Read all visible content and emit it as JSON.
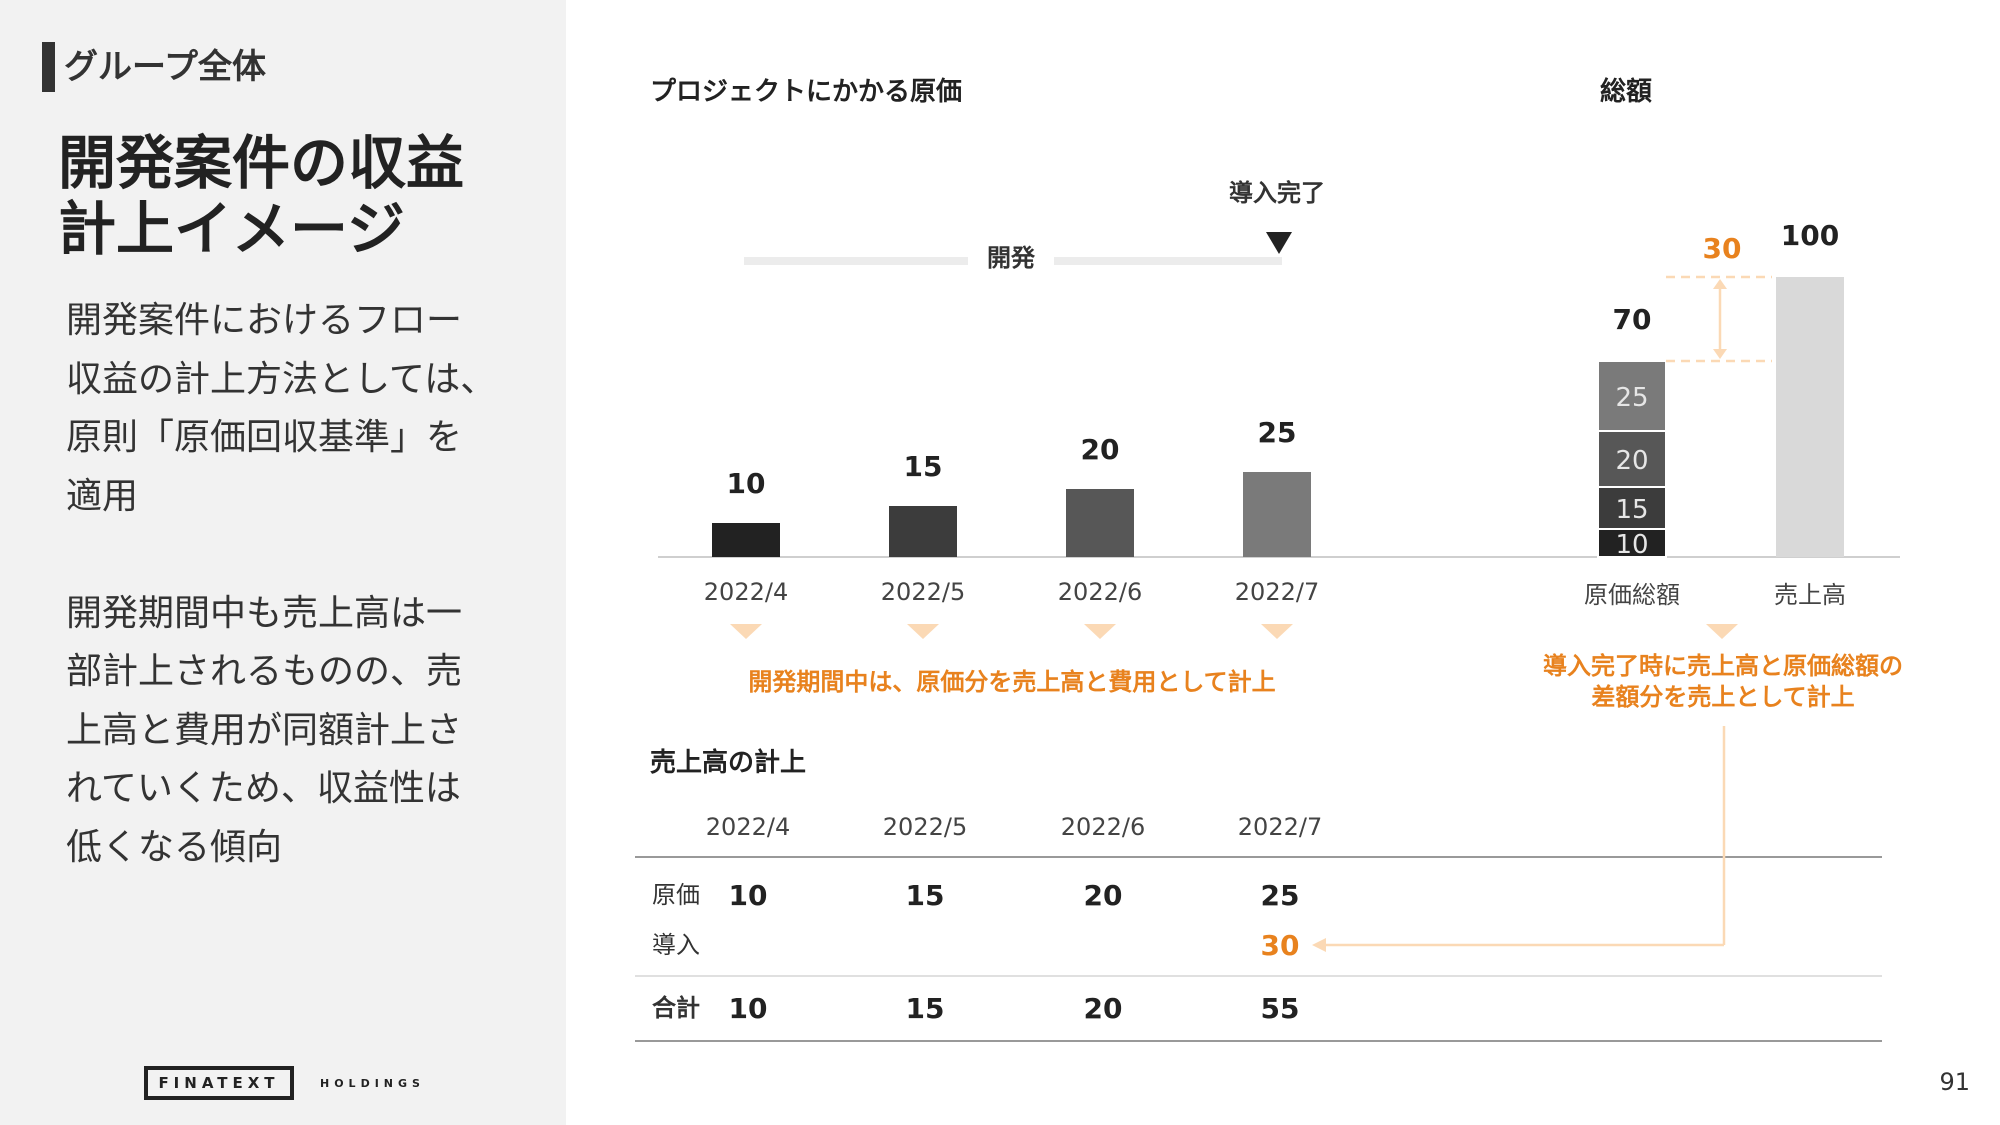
{
  "sidebar": {
    "section": "グループ全体",
    "title": "開発案件の収益\n計上イメージ",
    "body": "開発案件におけるフロー\n収益の計上方法としては、\n原則「原価回収基準」を\n適用\n\n開発期間中も売上高は一\n部計上されるものの、売\n上高と費用が同額計上さ\nれていくため、収益性は\n低くなる傾向",
    "logo_main": "FINATEXT",
    "logo_sub": "HOLDINGS"
  },
  "page_number": "91",
  "chart_data": [
    {
      "type": "bar",
      "title": "プロジェクトにかかる原価",
      "categories": [
        "2022/4",
        "2022/5",
        "2022/6",
        "2022/7"
      ],
      "values": [
        10,
        15,
        20,
        25
      ],
      "colors": [
        "#222222",
        "#3c3c3c",
        "#575757",
        "#7a7a7a"
      ],
      "phase_label": "開発",
      "milestone_label": "導入完了",
      "note": "開発期間中は、原価分を売上高と費用として計上"
    },
    {
      "type": "bar",
      "title": "総額",
      "categories": [
        "原価総額",
        "売上高"
      ],
      "stack": [
        10,
        15,
        20,
        25
      ],
      "stack_colors": [
        "#222222",
        "#3c3c3c",
        "#575757",
        "#7a7a7a"
      ],
      "totals": [
        70,
        100
      ],
      "total_bar_color": "#d9d9d9",
      "difference": 30,
      "note": "導入完了時に売上高と原価総額の\n差額分を売上として計上"
    }
  ],
  "table": {
    "title": "売上高の計上",
    "columns": [
      "2022/4",
      "2022/5",
      "2022/6",
      "2022/7"
    ],
    "rows": [
      {
        "label": "原価",
        "values": [
          "10",
          "15",
          "20",
          "25"
        ]
      },
      {
        "label": "導入",
        "values": [
          "",
          "",
          "",
          "30"
        ]
      },
      {
        "label": "合計",
        "values": [
          "10",
          "15",
          "20",
          "55"
        ]
      }
    ]
  },
  "colors": {
    "accent": "#e8821e",
    "accent_light": "#fbd9b5"
  }
}
